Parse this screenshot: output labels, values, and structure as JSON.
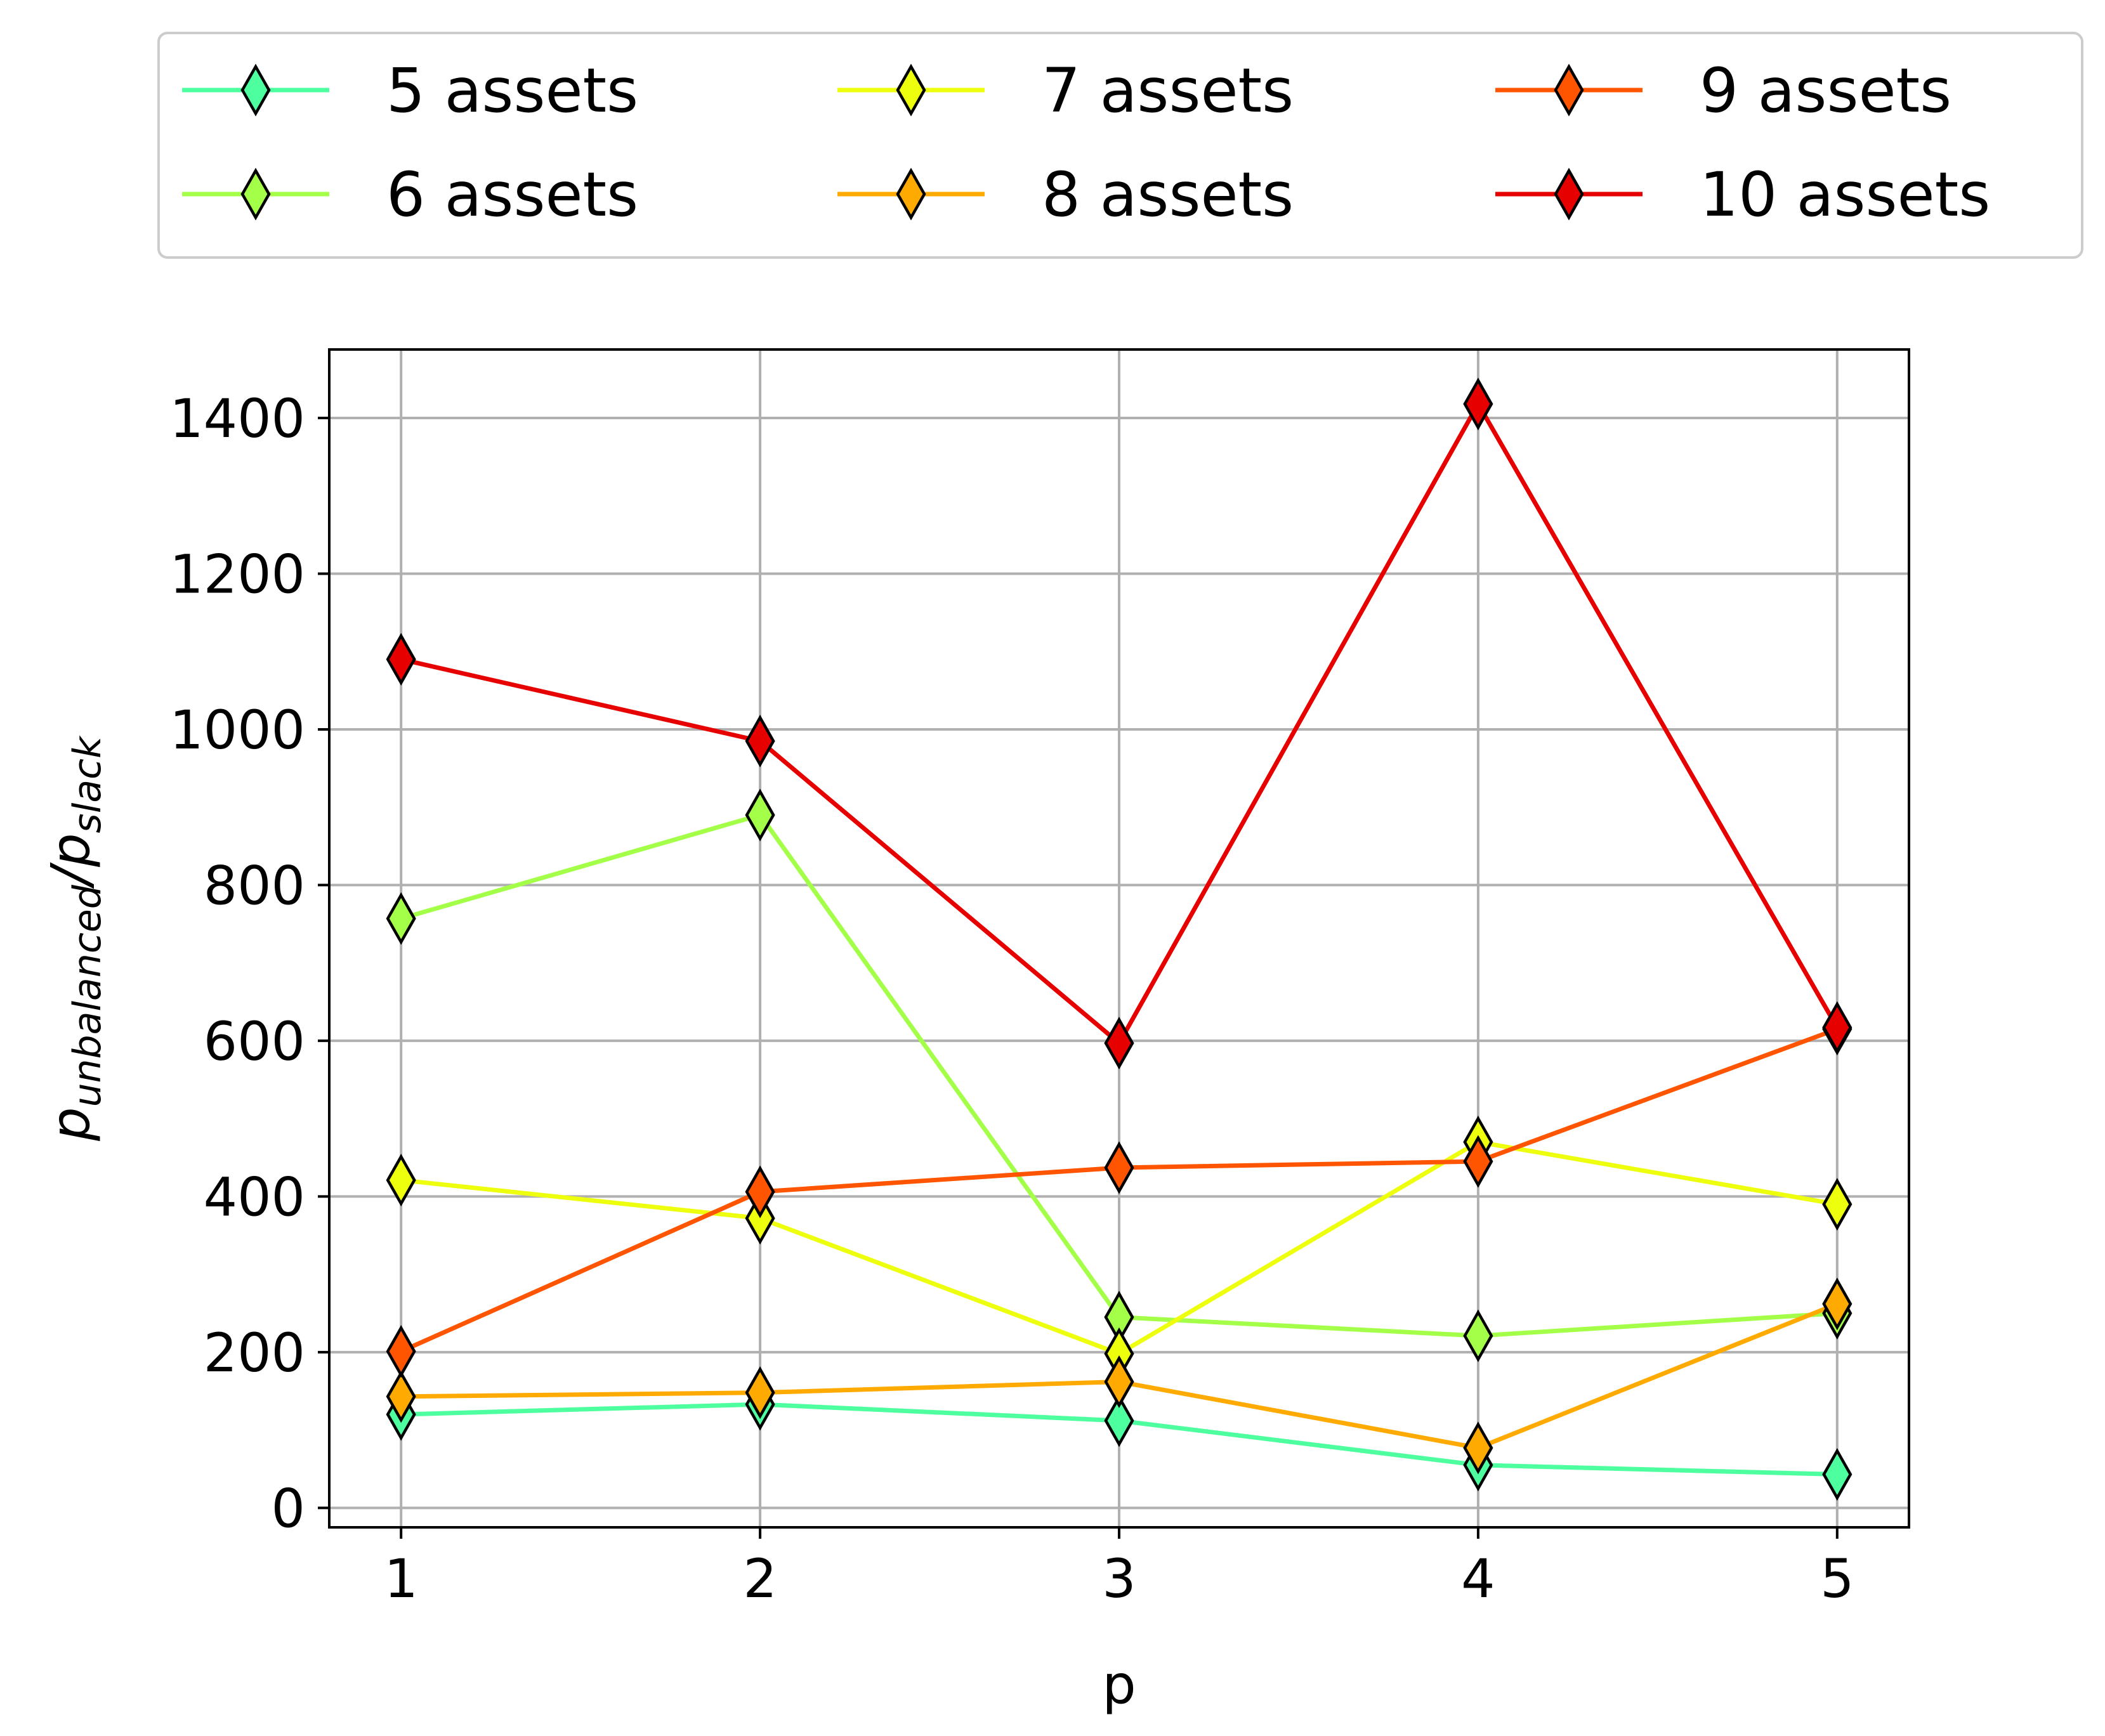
{
  "chart_data": {
    "type": "line",
    "xlabel": "p",
    "ylabel": {
      "base": "p",
      "num_sub": "unbalanced",
      "slash": "/p",
      "den_sub": "slack"
    },
    "x": [
      1,
      2,
      3,
      4,
      5
    ],
    "xticks": [
      "1",
      "2",
      "3",
      "4",
      "5"
    ],
    "xlim": [
      0.8,
      5.2
    ],
    "yticks": [
      "0",
      "200",
      "400",
      "600",
      "800",
      "1000",
      "1200",
      "1400"
    ],
    "ylim": [
      -25,
      1488
    ],
    "grid": true,
    "legend_position": "top (above plot, 3 columns)",
    "marker": "thin-diamond",
    "series": [
      {
        "name": "5 assets",
        "color": "#4dff9e",
        "values": [
          120,
          133,
          112,
          55,
          43
        ]
      },
      {
        "name": "6 assets",
        "color": "#a3ff47",
        "values": [
          757,
          890,
          245,
          221,
          250
        ]
      },
      {
        "name": "7 assets",
        "color": "#eeff0d",
        "values": [
          421,
          372,
          198,
          470,
          390
        ]
      },
      {
        "name": "8 assets",
        "color": "#ffaa00",
        "values": [
          143,
          148,
          162,
          77,
          262
        ]
      },
      {
        "name": "9 assets",
        "color": "#ff5500",
        "values": [
          201,
          406,
          437,
          445,
          615
        ]
      },
      {
        "name": "10 assets",
        "color": "#e60000",
        "values": [
          1090,
          985,
          597,
          1418,
          617
        ]
      }
    ]
  }
}
